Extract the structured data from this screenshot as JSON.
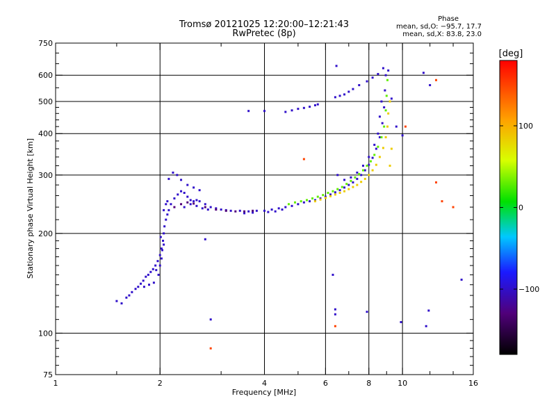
{
  "chart_data": {
    "type": "scatter",
    "title": "Tromsø 20121025 12:20:00–12:21:43",
    "subtitle": "RwPretec (8p)",
    "xlabel": "Frequency [MHz]",
    "ylabel": "Stationary phase Virtual Height [km]",
    "x_scale": "log2",
    "y_scale": "log",
    "xlim": [
      1,
      16
    ],
    "ylim": [
      75,
      750
    ],
    "x_ticks": [
      1,
      2,
      4,
      6,
      8,
      10,
      16
    ],
    "x_tick_labels": [
      "1",
      "2",
      "4",
      "6",
      "8",
      "10",
      "16"
    ],
    "y_ticks": [
      75,
      100,
      200,
      300,
      400,
      500,
      600,
      750
    ],
    "y_tick_labels": [
      "75",
      "100",
      "200",
      "300",
      "400",
      "500",
      "600",
      "750"
    ],
    "grid_x": [
      2,
      4,
      6,
      8,
      10
    ],
    "grid_y": [
      100,
      200,
      300,
      400,
      500,
      600
    ],
    "grid": true,
    "phase_stats": {
      "heading": "Phase",
      "o_line": "mean, sd,O: −95.7, 17.7",
      "x_line": "mean, sd,X:  83.8, 23.0"
    },
    "colorbar": {
      "label": "[deg]",
      "ticks": [
        100,
        0,
        -100
      ],
      "tick_labels": [
        "100",
        "0",
        "−100"
      ],
      "range": [
        -180,
        180
      ]
    },
    "series": [
      {
        "trace": "lower F-trace",
        "phase_deg": -100,
        "points": [
          [
            1.5,
            125
          ],
          [
            1.55,
            123
          ],
          [
            1.6,
            128
          ],
          [
            1.63,
            130
          ],
          [
            1.66,
            133
          ],
          [
            1.7,
            136
          ],
          [
            1.73,
            138
          ],
          [
            1.76,
            141
          ],
          [
            1.79,
            144
          ],
          [
            1.82,
            148
          ],
          [
            1.85,
            150
          ],
          [
            1.88,
            153
          ],
          [
            1.91,
            156
          ],
          [
            1.94,
            160
          ],
          [
            1.97,
            165
          ],
          [
            2.0,
            172
          ],
          [
            2.02,
            180
          ],
          [
            2.04,
            190
          ],
          [
            2.05,
            200
          ],
          [
            2.06,
            210
          ],
          [
            2.08,
            220
          ],
          [
            2.1,
            228
          ],
          [
            2.12,
            235
          ],
          [
            2.15,
            245
          ],
          [
            2.2,
            255
          ],
          [
            2.25,
            262
          ],
          [
            2.3,
            268
          ],
          [
            2.35,
            265
          ],
          [
            2.4,
            258
          ],
          [
            2.45,
            252
          ],
          [
            2.5,
            250
          ],
          [
            2.55,
            252
          ],
          [
            2.6,
            250
          ],
          [
            2.7,
            245
          ],
          [
            2.8,
            240
          ],
          [
            2.9,
            238
          ],
          [
            3.0,
            236
          ],
          [
            3.1,
            235
          ],
          [
            3.2,
            234
          ],
          [
            3.4,
            234
          ],
          [
            3.6,
            233
          ],
          [
            3.8,
            234
          ],
          [
            4.0,
            234
          ],
          [
            4.2,
            236
          ],
          [
            4.4,
            238
          ],
          [
            4.6,
            240
          ],
          [
            4.8,
            242
          ],
          [
            5.0,
            245
          ],
          [
            5.2,
            248
          ],
          [
            5.4,
            250
          ],
          [
            5.6,
            252
          ],
          [
            5.8,
            255
          ],
          [
            6.0,
            258
          ],
          [
            6.2,
            262
          ],
          [
            6.4,
            266
          ],
          [
            6.6,
            270
          ],
          [
            6.8,
            275
          ],
          [
            7.0,
            280
          ],
          [
            7.2,
            285
          ],
          [
            7.4,
            292
          ],
          [
            7.6,
            300
          ],
          [
            7.8,
            310
          ],
          [
            8.0,
            322
          ],
          [
            8.2,
            338
          ],
          [
            8.4,
            360
          ],
          [
            8.6,
            390
          ],
          [
            8.75,
            430
          ],
          [
            8.85,
            480
          ],
          [
            8.9,
            540
          ],
          [
            8.95,
            600
          ],
          [
            2.12,
            292
          ],
          [
            2.18,
            305
          ],
          [
            2.24,
            300
          ],
          [
            2.05,
            235
          ],
          [
            2.08,
            245
          ],
          [
            2.1,
            250
          ],
          [
            2.3,
            290
          ],
          [
            2.4,
            280
          ],
          [
            2.5,
            275
          ],
          [
            2.6,
            270
          ],
          [
            2.0,
            160
          ],
          [
            1.98,
            150
          ],
          [
            2.02,
            168
          ],
          [
            1.92,
            142
          ],
          [
            1.95,
            155
          ],
          [
            2.05,
            185
          ],
          [
            2.01,
            195
          ],
          [
            2.03,
            178
          ],
          [
            1.86,
            140
          ],
          [
            1.8,
            138
          ],
          [
            2.35,
            240
          ],
          [
            2.45,
            245
          ],
          [
            2.55,
            242
          ],
          [
            2.65,
            238
          ],
          [
            2.75,
            236
          ],
          [
            3.5,
            230
          ],
          [
            3.7,
            231
          ],
          [
            4.1,
            232
          ],
          [
            4.3,
            233
          ],
          [
            4.5,
            236
          ],
          [
            6.5,
            300
          ],
          [
            6.8,
            290
          ],
          [
            7.1,
            295
          ],
          [
            7.4,
            305
          ],
          [
            7.7,
            320
          ],
          [
            8.0,
            340
          ],
          [
            8.3,
            370
          ],
          [
            8.5,
            400
          ],
          [
            8.6,
            450
          ],
          [
            8.7,
            500
          ]
        ]
      },
      {
        "trace": "mixed-phase trace segment",
        "phase_deg": -130,
        "points": [
          [
            2.2,
            240
          ],
          [
            2.3,
            245
          ],
          [
            2.4,
            248
          ],
          [
            2.5,
            246
          ],
          [
            2.7,
            240
          ],
          [
            2.9,
            236
          ],
          [
            3.1,
            234
          ],
          [
            3.3,
            233
          ],
          [
            3.5,
            233
          ],
          [
            3.7,
            234
          ]
        ]
      },
      {
        "trace": "upper branch",
        "phase_deg": 30,
        "points": [
          [
            4.7,
            245
          ],
          [
            4.9,
            248
          ],
          [
            5.1,
            250
          ],
          [
            5.3,
            252
          ],
          [
            5.5,
            255
          ],
          [
            5.7,
            258
          ],
          [
            5.9,
            261
          ],
          [
            6.1,
            265
          ],
          [
            6.3,
            268
          ],
          [
            6.5,
            272
          ],
          [
            6.7,
            276
          ],
          [
            6.9,
            282
          ],
          [
            7.1,
            288
          ],
          [
            7.3,
            295
          ],
          [
            7.5,
            302
          ],
          [
            7.7,
            310
          ],
          [
            7.9,
            320
          ],
          [
            8.1,
            330
          ],
          [
            8.3,
            345
          ],
          [
            8.5,
            365
          ],
          [
            8.7,
            390
          ],
          [
            8.85,
            420
          ],
          [
            8.95,
            470
          ],
          [
            9.0,
            520
          ],
          [
            9.05,
            580
          ]
        ]
      },
      {
        "trace": "upper branch X",
        "phase_deg": 85,
        "points": [
          [
            5.6,
            250
          ],
          [
            5.8,
            253
          ],
          [
            6.0,
            256
          ],
          [
            6.2,
            259
          ],
          [
            6.4,
            262
          ],
          [
            6.6,
            265
          ],
          [
            6.8,
            268
          ],
          [
            7.0,
            272
          ],
          [
            7.2,
            276
          ],
          [
            7.4,
            280
          ],
          [
            7.6,
            286
          ],
          [
            7.8,
            292
          ],
          [
            8.0,
            300
          ],
          [
            8.2,
            310
          ],
          [
            8.4,
            322
          ],
          [
            8.6,
            340
          ],
          [
            8.8,
            362
          ],
          [
            8.95,
            390
          ],
          [
            9.05,
            420
          ],
          [
            9.1,
            460
          ],
          [
            9.2,
            500
          ],
          [
            9.3,
            360
          ],
          [
            9.2,
            320
          ]
        ]
      },
      {
        "trace": "high blobs",
        "phase_deg": -100,
        "points": [
          [
            3.6,
            468
          ],
          [
            4.0,
            468
          ],
          [
            4.6,
            465
          ],
          [
            4.8,
            470
          ],
          [
            5.0,
            475
          ],
          [
            5.2,
            478
          ],
          [
            5.4,
            482
          ],
          [
            5.6,
            487
          ],
          [
            5.7,
            490
          ],
          [
            6.4,
            515
          ],
          [
            6.6,
            520
          ],
          [
            6.8,
            525
          ],
          [
            7.0,
            535
          ],
          [
            7.2,
            545
          ],
          [
            7.5,
            560
          ],
          [
            7.9,
            575
          ],
          [
            8.2,
            590
          ],
          [
            8.5,
            605
          ],
          [
            6.45,
            640
          ],
          [
            8.8,
            630
          ],
          [
            9.1,
            620
          ],
          [
            9.3,
            510
          ],
          [
            9.6,
            420
          ],
          [
            10.0,
            395
          ],
          [
            11.5,
            610
          ],
          [
            12.0,
            560
          ]
        ]
      },
      {
        "trace": "stray points",
        "phase_deg": 150,
        "points": [
          [
            2.8,
            90
          ],
          [
            6.4,
            105
          ],
          [
            5.2,
            335
          ],
          [
            12.5,
            580
          ],
          [
            12.5,
            285
          ],
          [
            13.0,
            250
          ],
          [
            14.0,
            240
          ],
          [
            10.2,
            420
          ]
        ]
      },
      {
        "trace": "stray points blue",
        "phase_deg": -100,
        "points": [
          [
            2.8,
            110
          ],
          [
            2.7,
            192
          ],
          [
            6.3,
            150
          ],
          [
            6.4,
            118
          ],
          [
            6.4,
            114
          ],
          [
            7.9,
            116
          ],
          [
            9.9,
            108
          ],
          [
            11.9,
            117
          ],
          [
            14.8,
            145
          ],
          [
            11.7,
            105
          ]
        ]
      }
    ]
  }
}
